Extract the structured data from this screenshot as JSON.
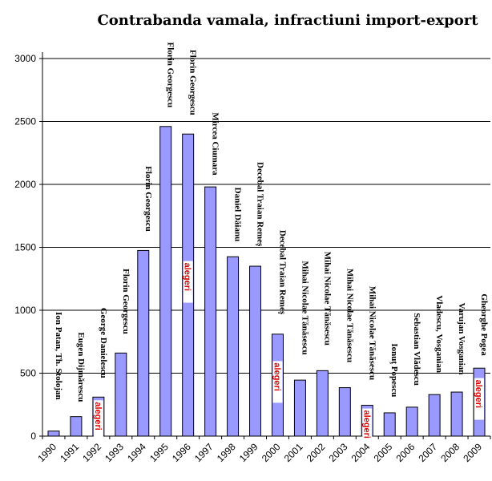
{
  "chart_data": {
    "type": "bar",
    "title": "Contrabanda vamala, infractiuni import-export",
    "xlabel": "",
    "ylabel": "",
    "ylim": [
      0,
      3000
    ],
    "yticks": [
      0,
      500,
      1000,
      1500,
      2000,
      2500,
      3000
    ],
    "grid": true,
    "bar_color": "#9999ff",
    "highlight_color": "#e00000",
    "categories": [
      "1990",
      "1991",
      "1992",
      "1993",
      "1994",
      "1995",
      "1996",
      "1997",
      "1998",
      "1999",
      "2000",
      "2001",
      "2002",
      "2003",
      "2004",
      "2005",
      "2006",
      "2007",
      "2008",
      "2009"
    ],
    "values": [
      40,
      155,
      310,
      660,
      1475,
      2460,
      2400,
      1980,
      1425,
      1350,
      810,
      445,
      520,
      385,
      245,
      185,
      230,
      330,
      350,
      540
    ],
    "minister_labels": [
      "Ion Patan, Th. Stolojan",
      "Eugen Dijmărescu",
      "George Danielescu",
      "Florin Georgescu",
      "Florin Georgescu",
      "Florin Georgescu",
      "Florin Georgescu",
      "Mircea Ciumara",
      "Daniel Dăianu",
      "Decebal Traian Remeş",
      "Decebal Traian Remeş",
      "Mihai Nicolae Tănăsescu",
      "Mihai Nicolae Tănăsescu",
      "Mihai Nicolae Tănăsescu",
      "Mihai Nicolae Tănăsescu",
      "Ionuţ Popescu",
      "Sebastian Vlădescu",
      "Vladescu, Vosganian",
      "Varujan Vosganian",
      "Gheorghe Pogea"
    ],
    "election_marker": "alegeri",
    "election_years": [
      "1992",
      "1996",
      "2000",
      "2004",
      "2009"
    ]
  }
}
